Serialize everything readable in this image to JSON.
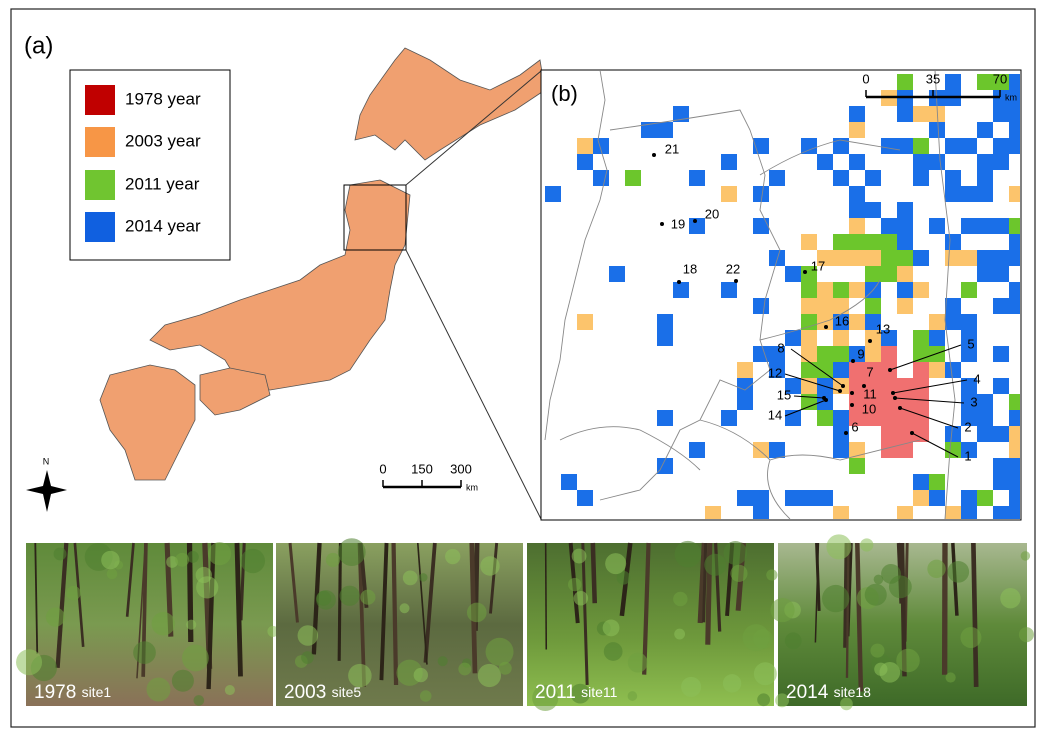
{
  "panel_a": {
    "label": "(a)",
    "legend": [
      {
        "label": "1978 year",
        "color": "#c00000"
      },
      {
        "label": "2003 year",
        "color": "#f79646"
      },
      {
        "label": "2011 year",
        "color": "#70c530"
      },
      {
        "label": "2014 year",
        "color": "#1060e0"
      }
    ],
    "compass": "N",
    "scale": {
      "ticks": [
        "0",
        "150",
        "300"
      ],
      "unit": "km"
    }
  },
  "panel_b": {
    "label": "(b)",
    "scale": {
      "ticks": [
        "0",
        "35",
        "70"
      ],
      "unit": "km"
    },
    "sites": [
      "1",
      "2",
      "3",
      "4",
      "5",
      "6",
      "7",
      "8",
      "9",
      "10",
      "11",
      "12",
      "13",
      "14",
      "15",
      "16",
      "17",
      "18",
      "19",
      "20",
      "21",
      "22"
    ]
  },
  "photos": [
    {
      "year": "1978",
      "site": "site1"
    },
    {
      "year": "2003",
      "site": "site5"
    },
    {
      "year": "2011",
      "site": "site11"
    },
    {
      "year": "2014",
      "site": "site18"
    }
  ]
}
